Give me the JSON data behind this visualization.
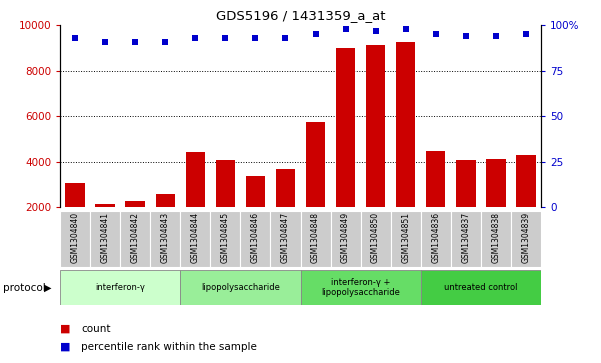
{
  "title": "GDS5196 / 1431359_a_at",
  "samples": [
    "GSM1304840",
    "GSM1304841",
    "GSM1304842",
    "GSM1304843",
    "GSM1304844",
    "GSM1304845",
    "GSM1304846",
    "GSM1304847",
    "GSM1304848",
    "GSM1304849",
    "GSM1304850",
    "GSM1304851",
    "GSM1304836",
    "GSM1304837",
    "GSM1304838",
    "GSM1304839"
  ],
  "counts": [
    3050,
    2150,
    2250,
    2550,
    4400,
    4050,
    3350,
    3650,
    5750,
    9000,
    9150,
    9250,
    4450,
    4050,
    4100,
    4300
  ],
  "percentiles": [
    93,
    91,
    91,
    91,
    93,
    93,
    93,
    93,
    95,
    98,
    97,
    98,
    95,
    94,
    94,
    95
  ],
  "groups": [
    {
      "label": "interferon-γ",
      "start": 0,
      "end": 4,
      "color": "#ccffcc"
    },
    {
      "label": "lipopolysaccharide",
      "start": 4,
      "end": 8,
      "color": "#99ee99"
    },
    {
      "label": "interferon-γ +\nlipopolysaccharide",
      "start": 8,
      "end": 12,
      "color": "#66dd66"
    },
    {
      "label": "untreated control",
      "start": 12,
      "end": 16,
      "color": "#44cc44"
    }
  ],
  "bar_color": "#cc0000",
  "dot_color": "#0000cc",
  "left_ylim": [
    2000,
    10000
  ],
  "right_ylim": [
    0,
    100
  ],
  "left_yticks": [
    2000,
    4000,
    6000,
    8000,
    10000
  ],
  "right_yticks": [
    0,
    25,
    50,
    75,
    100
  ],
  "right_yticklabels": [
    "0",
    "25",
    "50",
    "75",
    "100%"
  ],
  "grid_lines": [
    4000,
    6000,
    8000
  ],
  "sample_bg_color": "#cccccc",
  "sample_line_color": "#ffffff"
}
